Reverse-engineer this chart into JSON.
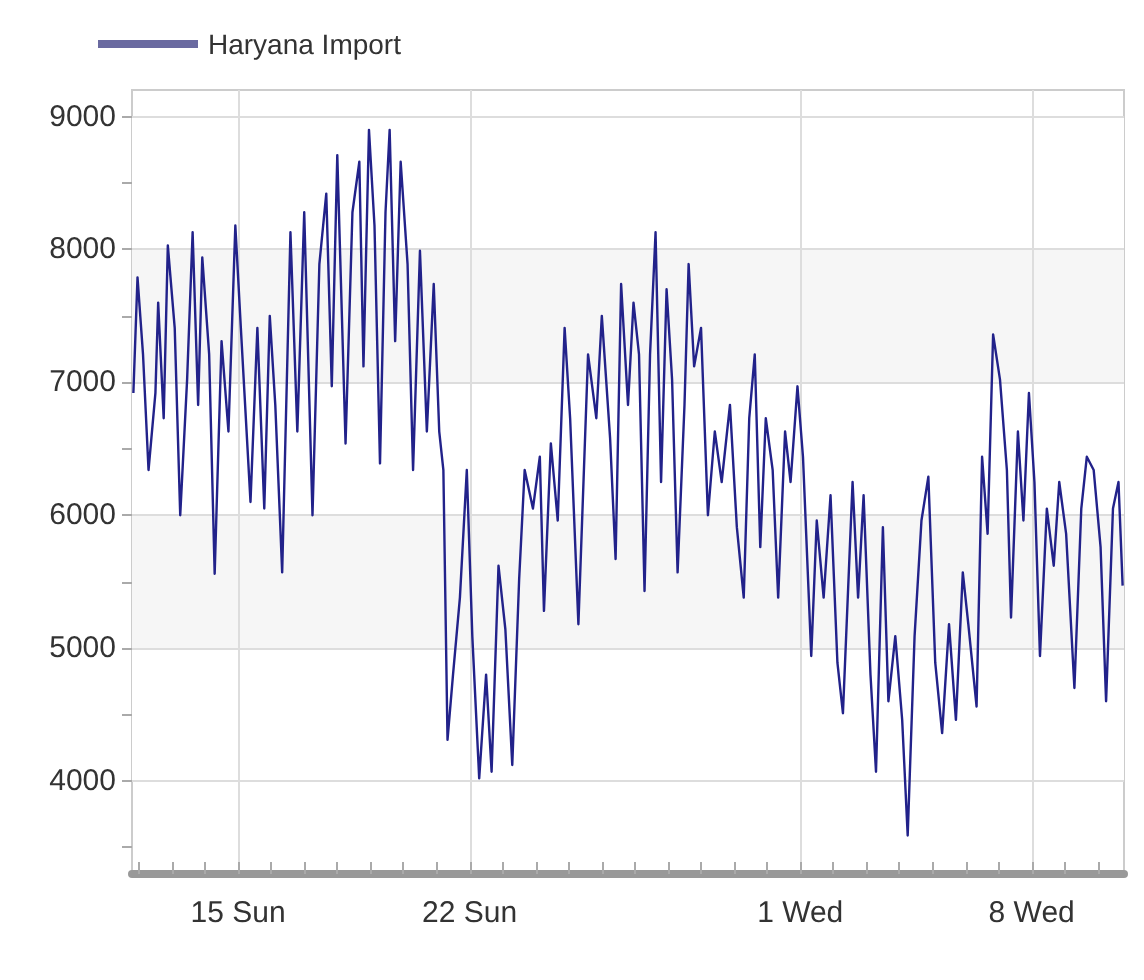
{
  "chart_data": {
    "type": "line",
    "legend": "top left",
    "grid": true,
    "marker": "none",
    "line_style": "solid",
    "xlim": [
      "--07-11T19:00",
      "--08-10T19:00"
    ],
    "xticks": [
      {
        "value": "--07-12",
        "label": null
      },
      {
        "value": "--07-13",
        "label": null
      },
      {
        "value": "--07-14",
        "label": null
      },
      {
        "value": "--07-15",
        "label": "15 Sun"
      },
      {
        "value": "--07-16",
        "label": null
      },
      {
        "value": "--07-17",
        "label": null
      },
      {
        "value": "--07-18",
        "label": null
      },
      {
        "value": "--07-19",
        "label": null
      },
      {
        "value": "--07-20",
        "label": null
      },
      {
        "value": "--07-21",
        "label": null
      },
      {
        "value": "--07-22",
        "label": "22 Sun"
      },
      {
        "value": "--07-23",
        "label": null
      },
      {
        "value": "--07-24",
        "label": null
      },
      {
        "value": "--07-25",
        "label": null
      },
      {
        "value": "--07-26",
        "label": null
      },
      {
        "value": "--07-27",
        "label": null
      },
      {
        "value": "--07-28",
        "label": null
      },
      {
        "value": "--07-29",
        "label": null
      },
      {
        "value": "--07-30",
        "label": null
      },
      {
        "value": "--07-31",
        "label": null
      },
      {
        "value": "--08-01",
        "label": "1 Wed"
      },
      {
        "value": "--08-02",
        "label": null
      },
      {
        "value": "--08-03",
        "label": null
      },
      {
        "value": "--08-04",
        "label": null
      },
      {
        "value": "--08-05",
        "label": null
      },
      {
        "value": "--08-06",
        "label": null
      },
      {
        "value": "--08-07",
        "label": null
      },
      {
        "value": "--08-08",
        "label": "8 Wed"
      },
      {
        "value": "--08-09",
        "label": null
      },
      {
        "value": "--08-10",
        "label": null
      }
    ],
    "ylim": [
      3300,
      9200
    ],
    "yticks": [
      {
        "value": 3500,
        "label": null
      },
      4000,
      {
        "value": 4500,
        "label": null
      },
      5000,
      {
        "value": 5500,
        "label": null
      },
      6000,
      {
        "value": 6500,
        "label": null
      },
      7000,
      {
        "value": 7500,
        "label": null
      },
      8000,
      {
        "value": 8500,
        "label": null
      },
      9000
    ],
    "series": [
      {
        "name": "Haryana Import",
        "color": "#22228a",
        "x": [
          "--07-11T20:00",
          "--07-11T23:00",
          "--07-12T03:00",
          "--07-12T07:00",
          "--07-12T12:00",
          "--07-12T14:00",
          "--07-12T18:00",
          "--07-12T21:00",
          "--07-13T02:00",
          "--07-13T06:00",
          "--07-13T11:00",
          "--07-13T15:00",
          "--07-13T19:00",
          "--07-13T22:00",
          "--07-14T03:00",
          "--07-14T07:00",
          "--07-14T12:00",
          "--07-14T17:00",
          "--07-14T22:00",
          "--07-15T02:00",
          "--07-15T09:00",
          "--07-15T14:00",
          "--07-15T19:00",
          "--07-15T23:00",
          "--07-16T03:00",
          "--07-16T08:00",
          "--07-16T14:00",
          "--07-16T19:00",
          "--07-17T00:00",
          "--07-17T06:00",
          "--07-17T11:00",
          "--07-17T16:00",
          "--07-17T20:00",
          "--07-18T00:00",
          "--07-18T06:00",
          "--07-18T11:00",
          "--07-18T16:00",
          "--07-18T19:00",
          "--07-18T23:00",
          "--07-19T03:00",
          "--07-19T07:00",
          "--07-19T11:00",
          "--07-19T14:00",
          "--07-19T18:00",
          "--07-19T22:00",
          "--07-20T03:00",
          "--07-20T07:00",
          "--07-20T12:00",
          "--07-20T17:00",
          "--07-20T22:00",
          "--07-21T02:00",
          "--07-21T05:00",
          "--07-21T08:00",
          "--07-21T12:00",
          "--07-21T17:00",
          "--07-21T22:00",
          "--07-22T02:00",
          "--07-22T07:00",
          "--07-22T12:00",
          "--07-22T16:00",
          "--07-22T21:00",
          "--07-23T02:00",
          "--07-23T07:00",
          "--07-23T12:00",
          "--07-23T16:00",
          "--07-23T22:00",
          "--07-24T03:00",
          "--07-24T06:00",
          "--07-24T11:00",
          "--07-24T16:00",
          "--07-24T21:00",
          "--07-25T01:00",
          "--07-25T07:00",
          "--07-25T14:00",
          "--07-25T20:00",
          "--07-26T00:00",
          "--07-26T06:00",
          "--07-26T10:00",
          "--07-26T14:00",
          "--07-26T19:00",
          "--07-26T23:00",
          "--07-27T03:00",
          "--07-27T07:00",
          "--07-27T11:00",
          "--07-27T15:00",
          "--07-27T19:00",
          "--07-27T23:00",
          "--07-28T03:00",
          "--07-28T07:00",
          "--07-28T12:00",
          "--07-28T15:00",
          "--07-28T19:00",
          "--07-29T00:00",
          "--07-29T05:00",
          "--07-29T10:00",
          "--07-29T15:00",
          "--07-29T21:00",
          "--07-30T02:00",
          "--07-30T07:00",
          "--07-30T11:00",
          "--07-30T15:00",
          "--07-30T19:00",
          "--07-30T23:00",
          "--07-31T04:00",
          "--07-31T08:00",
          "--07-31T13:00",
          "--07-31T17:00",
          "--07-31T22:00",
          "--08-01T02:00",
          "--08-01T08:00",
          "--08-01T12:00",
          "--08-01T17:00",
          "--08-01T22:00",
          "--08-02T03:00",
          "--08-02T07:00",
          "--08-02T14:00",
          "--08-02T18:00",
          "--08-02T22:00",
          "--08-03T03:00",
          "--08-03T07:00",
          "--08-03T12:00",
          "--08-03T16:00",
          "--08-03T21:00",
          "--08-04T02:00",
          "--08-04T06:00",
          "--08-04T11:00",
          "--08-04T16:00",
          "--08-04T21:00",
          "--08-05T02:00",
          "--08-05T07:00",
          "--08-05T12:00",
          "--08-05T17:00",
          "--08-05T22:00",
          "--08-06T02:00",
          "--08-06T08:00",
          "--08-06T12:00",
          "--08-06T16:00",
          "--08-06T20:00",
          "--08-07T01:00",
          "--08-07T06:00",
          "--08-07T09:00",
          "--08-07T14:00",
          "--08-07T18:00",
          "--08-07T22:00",
          "--08-08T02:00",
          "--08-08T06:00",
          "--08-08T11:00",
          "--08-08T16:00",
          "--08-08T20:00",
          "--08-09T01:00",
          "--08-09T07:00",
          "--08-09T12:00",
          "--08-09T16:00",
          "--08-09T21:00",
          "--08-10T02:00",
          "--08-10T06:00",
          "--08-10T11:00",
          "--08-10T15:00",
          "--08-10T18:00"
        ],
        "values": [
          6920,
          7790,
          7210,
          6340,
          6920,
          7600,
          6730,
          8030,
          7410,
          6000,
          7020,
          8130,
          6830,
          7940,
          7210,
          5560,
          7310,
          6630,
          8180,
          7410,
          6100,
          7410,
          6050,
          7500,
          6830,
          5570,
          8130,
          6630,
          8280,
          6000,
          7890,
          8420,
          6970,
          8710,
          6540,
          8280,
          8660,
          7120,
          8900,
          8180,
          6390,
          8280,
          8900,
          7310,
          8660,
          7890,
          6340,
          7990,
          6630,
          7740,
          6630,
          6340,
          4310,
          4800,
          5380,
          6340,
          5090,
          4020,
          4800,
          4070,
          5620,
          5140,
          4120,
          5520,
          6340,
          6050,
          6440,
          5280,
          6540,
          5960,
          7410,
          6730,
          5180,
          7210,
          6730,
          7500,
          6580,
          5670,
          7740,
          6830,
          7600,
          7210,
          5430,
          7210,
          8130,
          6250,
          7700,
          7020,
          5570,
          6830,
          7890,
          7120,
          7410,
          6000,
          6630,
          6250,
          6830,
          5910,
          5380,
          6730,
          7210,
          5760,
          6730,
          6340,
          5380,
          6630,
          6250,
          6970,
          6440,
          4940,
          5960,
          5380,
          6150,
          4890,
          4510,
          6250,
          5380,
          6150,
          4800,
          4070,
          5910,
          4600,
          5090,
          4460,
          3590,
          5090,
          5960,
          6290,
          4890,
          4360,
          5180,
          4460,
          5570,
          5180,
          4560,
          6440,
          5860,
          7360,
          7020,
          6340,
          5230,
          6630,
          5960,
          6920,
          6250,
          4940,
          6050,
          5620,
          6250,
          5860,
          4700,
          6050,
          6440,
          6340,
          5760,
          4600,
          6050,
          6250,
          5470
        ]
      }
    ]
  }
}
